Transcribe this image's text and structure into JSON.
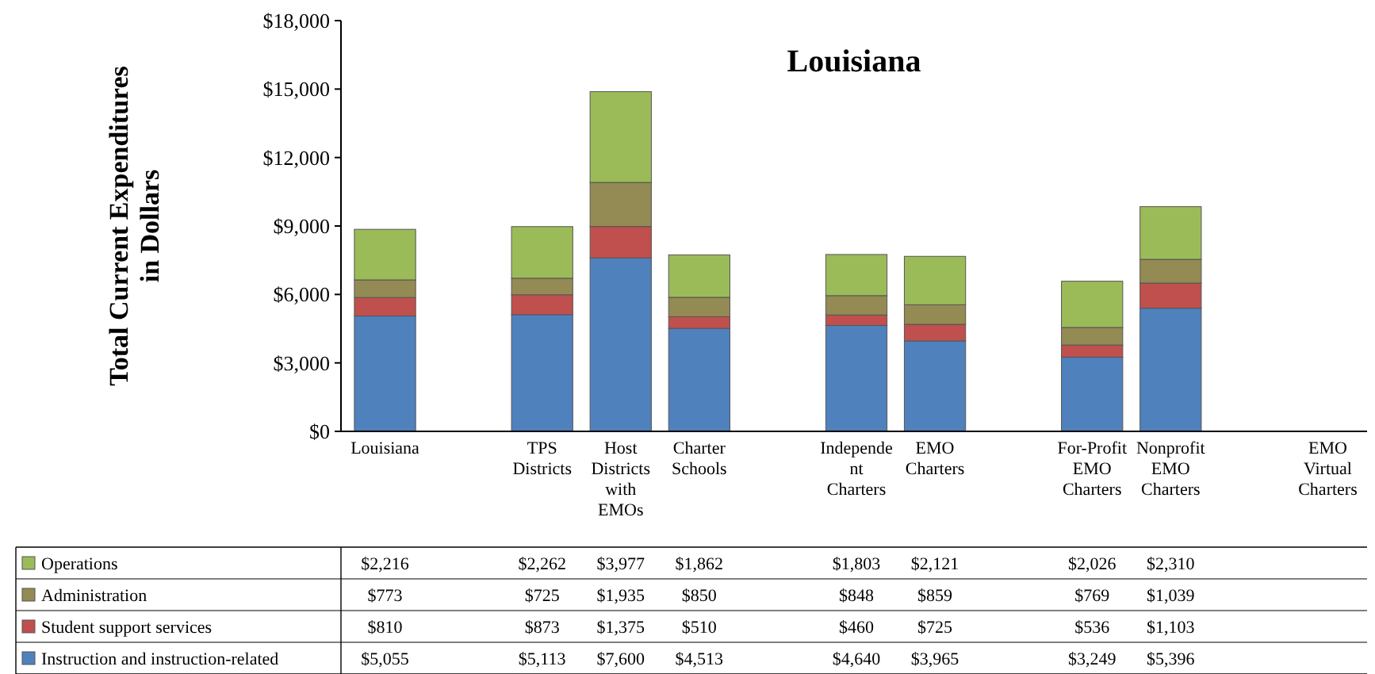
{
  "chart_data": {
    "type": "bar",
    "title": "Louisiana",
    "ylabel": "Total Current Expenditures in Dollars",
    "stacked": true,
    "legend": "bottom",
    "grid": false,
    "categories": [
      "Louisiana",
      null,
      "TPS Districts",
      "Host Districts with EMOs",
      "Charter Schools",
      null,
      "Independent Charters",
      "EMO Charters",
      null,
      "For-Profit EMO Charters",
      "Nonprofit EMO Charters",
      null,
      "EMO Virtual Charters"
    ],
    "ylim": [
      0,
      18000
    ],
    "yticks": [
      {
        "value": 0,
        "label": "$0"
      },
      {
        "value": 3000,
        "label": "$3,000"
      },
      {
        "value": 6000,
        "label": "$6,000"
      },
      {
        "value": 9000,
        "label": "$9,000"
      },
      {
        "value": 12000,
        "label": "$12,000"
      },
      {
        "value": 15000,
        "label": "$15,000"
      },
      {
        "value": 18000,
        "label": "$18,000"
      }
    ],
    "series": [
      {
        "name": "Instruction and instruction-related",
        "color": "#4f81bd",
        "values": [
          5055,
          null,
          5113,
          7600,
          4513,
          null,
          4640,
          3965,
          null,
          3249,
          5396,
          null,
          null
        ],
        "value_labels": [
          "$5,055",
          null,
          "$5,113",
          "$7,600",
          "$4,513",
          null,
          "$4,640",
          "$3,965",
          null,
          "$3,249",
          "$5,396",
          null,
          null
        ]
      },
      {
        "name": "Student support services",
        "color": "#c0504d",
        "values": [
          810,
          null,
          873,
          1375,
          510,
          null,
          460,
          725,
          null,
          536,
          1103,
          null,
          null
        ],
        "value_labels": [
          "$810",
          null,
          "$873",
          "$1,375",
          "$510",
          null,
          "$460",
          "$725",
          null,
          "$536",
          "$1,103",
          null,
          null
        ]
      },
      {
        "name": "Administration",
        "color": "#948a54",
        "values": [
          773,
          null,
          725,
          1935,
          850,
          null,
          848,
          859,
          null,
          769,
          1039,
          null,
          null
        ],
        "value_labels": [
          "$773",
          null,
          "$725",
          "$1,935",
          "$850",
          null,
          "$848",
          "$859",
          null,
          "$769",
          "$1,039",
          null,
          null
        ]
      },
      {
        "name": "Operations",
        "color": "#9bbb59",
        "values": [
          2216,
          null,
          2262,
          3977,
          1862,
          null,
          1803,
          2121,
          null,
          2026,
          2310,
          null,
          null
        ],
        "value_labels": [
          "$2,216",
          null,
          "$2,262",
          "$3,977",
          "$1,862",
          null,
          "$1,803",
          "$2,121",
          null,
          "$2,026",
          "$2,310",
          null,
          null
        ]
      }
    ]
  }
}
